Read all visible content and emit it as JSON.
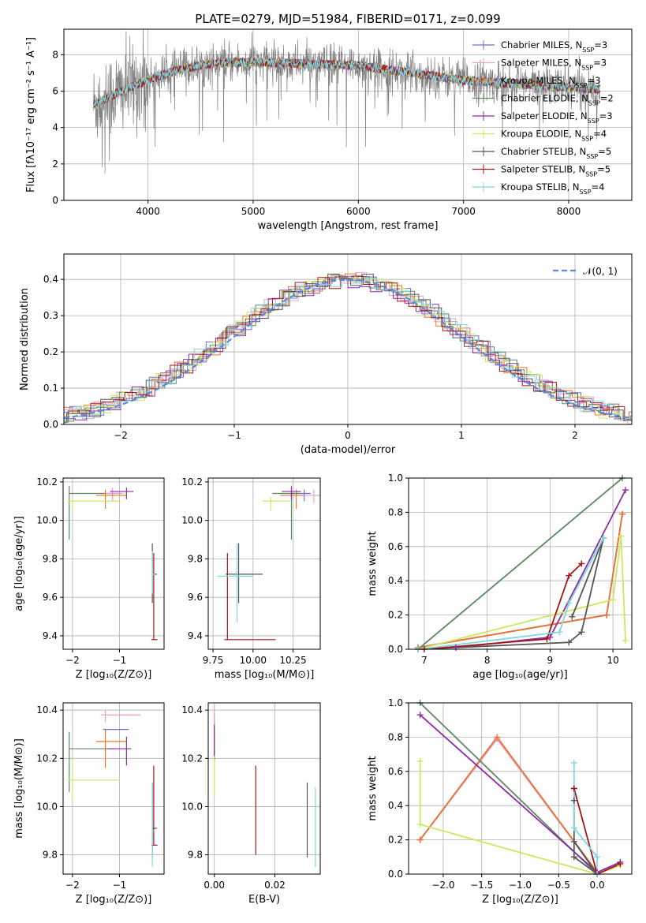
{
  "series_colors": [
    "#6a6fd0",
    "#e8a0c8",
    "#e8772e",
    "#5a8a60",
    "#8e2ca8",
    "#cbe860",
    "#555555",
    "#a31518",
    "#7fd8e0"
  ],
  "chart_data": [
    {
      "id": "spectrum",
      "type": "line",
      "title": "PLATE=0279, MJD=51984, FIBERID=0171, z=0.099",
      "xlabel": "wavelength [Angstrom, rest frame]",
      "ylabel": "Flux [fλ10⁻¹⁷ erg cm⁻² s⁻¹ A⁻¹]",
      "xlim": [
        3200,
        8600
      ],
      "ylim": [
        0,
        9.4
      ],
      "xticks": [
        4000,
        5000,
        6000,
        7000,
        8000
      ],
      "yticks": [
        0,
        2,
        4,
        6,
        8
      ],
      "legend_position": "top-right",
      "legend": [
        {
          "label": "Chabrier MILES, N_SSP=3",
          "color": "#6a6fd0"
        },
        {
          "label": "Salpeter MILES, N_SSP=3",
          "color": "#e8a0c8"
        },
        {
          "label": "Kroupa MILES, N_SSP=3",
          "color": "#e8772e"
        },
        {
          "label": "Chabrier ELODIE, N_SSP=2",
          "color": "#5a8a60"
        },
        {
          "label": "Salpeter ELODIE, N_SSP=3",
          "color": "#8e2ca8"
        },
        {
          "label": "Kroupa ELODIE, N_SSP=4",
          "color": "#cbe860"
        },
        {
          "label": "Chabrier STELIB, N_SSP=5",
          "color": "#555555"
        },
        {
          "label": "Salpeter STELIB, N_SSP=5",
          "color": "#a31518"
        },
        {
          "label": "Kroupa STELIB, N_SSP=4",
          "color": "#7fd8e0"
        }
      ],
      "model_shape": {
        "x": [
          3500,
          3700,
          4000,
          4300,
          4600,
          5000,
          5500,
          6000,
          6500,
          7000,
          7500,
          8000,
          8300
        ],
        "y": [
          5.3,
          5.9,
          6.6,
          7.2,
          7.5,
          7.6,
          7.5,
          7.4,
          7.0,
          6.6,
          6.4,
          6.2,
          6.1
        ]
      },
      "observed_color": "#808080"
    },
    {
      "id": "residuals",
      "type": "histogram",
      "xlabel": "(data-model)/error",
      "ylabel": "Normed distribution",
      "xlim": [
        -2.5,
        2.5
      ],
      "ylim": [
        0,
        0.47
      ],
      "xticks": [
        -2,
        -1,
        0,
        1,
        2
      ],
      "yticks": [
        0,
        0.1,
        0.2,
        0.3,
        0.4
      ],
      "bin_width": 0.1,
      "reference": {
        "label": "𝒩(0, 1)",
        "mean": 0,
        "sigma": 1,
        "color": "#5b8bd8"
      },
      "legend_position": "top-right"
    },
    {
      "id": "age_vs_Z",
      "type": "errorbar",
      "xlabel": "Z [log₁₀(Z/Z⊙)]",
      "ylabel": "age  [log₁₀(age/yr)]",
      "xlim": [
        -2.2,
        -0.05
      ],
      "ylim": [
        9.33,
        10.22
      ],
      "xticks": [
        -2,
        -1
      ],
      "yticks": [
        9.4,
        9.6,
        9.8,
        10.0,
        10.2
      ],
      "points": [
        {
          "x": -1.15,
          "y": 10.14,
          "xerr": [
            0.25,
            0.2
          ],
          "yerr": [
            0.04,
            0.02
          ],
          "color": "#6a6fd0"
        },
        {
          "x": -1.15,
          "y": 10.14,
          "xerr": [
            0.25,
            0.2
          ],
          "yerr": [
            0.04,
            0.03
          ],
          "color": "#e8a0c8"
        },
        {
          "x": -1.3,
          "y": 10.13,
          "xerr": [
            0.2,
            0.45
          ],
          "yerr": [
            0.07,
            0.03
          ],
          "color": "#e8772e"
        },
        {
          "x": -2.07,
          "y": 10.14,
          "xerr": [
            0.0,
            0.75
          ],
          "yerr": [
            0.24,
            0.04
          ],
          "color": "#5a8a60"
        },
        {
          "x": -0.85,
          "y": 10.15,
          "xerr": [
            0.35,
            0.15
          ],
          "yerr": [
            0.04,
            0.02
          ],
          "color": "#8e2ca8"
        },
        {
          "x": -2.0,
          "y": 10.1,
          "xerr": [
            0.1,
            1.0
          ],
          "yerr": [
            0.05,
            0.02
          ],
          "color": "#cbe860"
        },
        {
          "x": -0.3,
          "y": 9.72,
          "xerr": [
            0.0,
            0.1
          ],
          "yerr": [
            0.15,
            0.16
          ],
          "color": "#555555"
        },
        {
          "x": -0.27,
          "y": 9.38,
          "xerr": [
            0.05,
            0.08
          ],
          "yerr": [
            0.0,
            0.45
          ],
          "color": "#a31518"
        },
        {
          "x": -0.3,
          "y": 9.72,
          "xerr": [
            0.0,
            0.05
          ],
          "yerr": [
            0.1,
            0.12
          ],
          "color": "#7fd8e0"
        }
      ]
    },
    {
      "id": "age_vs_mass",
      "type": "errorbar",
      "xlabel": "mass [log₁₀(M/M⊙)]",
      "ylabel": "",
      "xlim": [
        9.72,
        10.42
      ],
      "ylim": [
        9.33,
        10.22
      ],
      "xticks": [
        9.75,
        10.0,
        10.25
      ],
      "yticks": [
        9.4,
        9.6,
        9.8,
        10.0,
        10.2
      ],
      "points": [
        {
          "x": 10.32,
          "y": 10.14,
          "xerr": [
            0.08,
            0.04
          ],
          "yerr": [
            0.04,
            0.02
          ],
          "color": "#6a6fd0"
        },
        {
          "x": 10.38,
          "y": 10.13,
          "xerr": [
            0.1,
            0.05
          ],
          "yerr": [
            0.04,
            0.03
          ],
          "color": "#e8a0c8"
        },
        {
          "x": 10.27,
          "y": 10.13,
          "xerr": [
            0.1,
            0.05
          ],
          "yerr": [
            0.07,
            0.03
          ],
          "color": "#e8772e"
        },
        {
          "x": 10.24,
          "y": 10.14,
          "xerr": [
            0.12,
            0.05
          ],
          "yerr": [
            0.24,
            0.04
          ],
          "color": "#5a8a60"
        },
        {
          "x": 10.24,
          "y": 10.15,
          "xerr": [
            0.06,
            0.06
          ],
          "yerr": [
            0.04,
            0.02
          ],
          "color": "#8e2ca8"
        },
        {
          "x": 10.11,
          "y": 10.1,
          "xerr": [
            0.05,
            0.12
          ],
          "yerr": [
            0.05,
            0.02
          ],
          "color": "#cbe860"
        },
        {
          "x": 9.91,
          "y": 9.72,
          "xerr": [
            0.08,
            0.15
          ],
          "yerr": [
            0.15,
            0.16
          ],
          "color": "#555555"
        },
        {
          "x": 9.84,
          "y": 9.38,
          "xerr": [
            0.02,
            0.3
          ],
          "yerr": [
            0.0,
            0.45
          ],
          "color": "#a31518"
        },
        {
          "x": 9.9,
          "y": 9.71,
          "xerr": [
            0.12,
            0.1
          ],
          "yerr": [
            0.24,
            0.17
          ],
          "color": "#7fd8e0"
        }
      ]
    },
    {
      "id": "weight_vs_age",
      "type": "line",
      "xlabel": "age  [log₁₀(age/yr)]",
      "ylabel": "mass weight",
      "xlim": [
        6.75,
        10.3
      ],
      "ylim": [
        0,
        1
      ],
      "xticks": [
        7,
        8,
        9,
        10
      ],
      "yticks": [
        0,
        0.2,
        0.4,
        0.6,
        0.8,
        1.0
      ],
      "series": [
        {
          "color": "#6a6fd0",
          "x": [
            6.9,
            9.9,
            10.15
          ],
          "y": [
            0.01,
            0.2,
            0.79
          ]
        },
        {
          "color": "#e8a0c8",
          "x": [
            6.9,
            9.9,
            10.15
          ],
          "y": [
            0.01,
            0.2,
            0.79
          ]
        },
        {
          "color": "#e8772e",
          "x": [
            6.9,
            9.9,
            10.15
          ],
          "y": [
            0.01,
            0.2,
            0.79
          ]
        },
        {
          "color": "#5a8a60",
          "x": [
            6.9,
            10.15
          ],
          "y": [
            0.0,
            1.0
          ]
        },
        {
          "color": "#8e2ca8",
          "x": [
            7.5,
            9.0,
            10.2
          ],
          "y": [
            0.01,
            0.07,
            0.93
          ]
        },
        {
          "color": "#cbe860",
          "x": [
            6.9,
            10.0,
            10.13,
            10.2
          ],
          "y": [
            0.0,
            0.29,
            0.66,
            0.05
          ]
        },
        {
          "color": "#555555",
          "x": [
            6.9,
            9.3,
            9.5,
            9.85,
            9.35
          ],
          "y": [
            0.0,
            0.04,
            0.1,
            0.65,
            0.19
          ]
        },
        {
          "color": "#a31518",
          "x": [
            7.0,
            8.95,
            9.3,
            9.5
          ],
          "y": [
            0.0,
            0.06,
            0.43,
            0.5
          ]
        },
        {
          "color": "#7fd8e0",
          "x": [
            6.9,
            9.15,
            9.3,
            9.85
          ],
          "y": [
            0.0,
            0.1,
            0.27,
            0.65
          ]
        }
      ]
    },
    {
      "id": "mass_vs_Z",
      "type": "errorbar",
      "xlabel": "Z [log₁₀(Z/Z⊙)]",
      "ylabel": "mass [log₁₀(M/M⊙)]",
      "xlim": [
        -2.2,
        -0.05
      ],
      "ylim": [
        9.72,
        10.43
      ],
      "xticks": [
        -2,
        -1
      ],
      "yticks": [
        9.8,
        10.0,
        10.2,
        10.4
      ],
      "points": [
        {
          "x": -1.3,
          "y": 10.32,
          "xerr": [
            0.05,
            0.5
          ],
          "yerr": [
            0.0,
            0.0
          ],
          "color": "#6a6fd0"
        },
        {
          "x": -1.3,
          "y": 10.38,
          "xerr": [
            0.1,
            0.75
          ],
          "yerr": [
            0.03,
            0.02
          ],
          "color": "#e8a0c8"
        },
        {
          "x": -1.3,
          "y": 10.27,
          "xerr": [
            0.2,
            0.45
          ],
          "yerr": [
            0.11,
            0.05
          ],
          "color": "#e8772e"
        },
        {
          "x": -2.07,
          "y": 10.24,
          "xerr": [
            0.0,
            1.0
          ],
          "yerr": [
            0.18,
            0.07
          ],
          "color": "#5a8a60"
        },
        {
          "x": -0.85,
          "y": 10.24,
          "xerr": [
            0.4,
            0.1
          ],
          "yerr": [
            0.07,
            0.05
          ],
          "color": "#8e2ca8"
        },
        {
          "x": -2.0,
          "y": 10.11,
          "xerr": [
            0.1,
            1.0
          ],
          "yerr": [
            0.08,
            0.09
          ],
          "color": "#cbe860"
        },
        {
          "x": -0.3,
          "y": 9.91,
          "xerr": [
            0.0,
            0.1
          ],
          "yerr": [
            0.12,
            0.19
          ],
          "color": "#555555"
        },
        {
          "x": -0.27,
          "y": 9.84,
          "xerr": [
            0.05,
            0.08
          ],
          "yerr": [
            0.0,
            0.33
          ],
          "color": "#a31518"
        },
        {
          "x": -0.3,
          "y": 9.9,
          "xerr": [
            0.0,
            0.05
          ],
          "yerr": [
            0.15,
            0.2
          ],
          "color": "#7fd8e0"
        }
      ]
    },
    {
      "id": "mass_vs_ebv",
      "type": "errorbar",
      "xlabel": "E(B-V)",
      "ylabel": "",
      "xlim": [
        -0.002,
        0.035
      ],
      "ylim": [
        9.72,
        10.43
      ],
      "xticks": [
        0.0,
        0.02
      ],
      "yticks": [
        9.8,
        10.0,
        10.2,
        10.4
      ],
      "points": [
        {
          "x": 0.0,
          "y": 10.32,
          "xerr": [
            0,
            0
          ],
          "yerr": [
            0.1,
            0.06
          ],
          "color": "#6a6fd0"
        },
        {
          "x": 0.0,
          "y": 10.38,
          "xerr": [
            0,
            0
          ],
          "yerr": [
            0.1,
            0.04
          ],
          "color": "#e8a0c8"
        },
        {
          "x": 0.0,
          "y": 10.27,
          "xerr": [
            0,
            0
          ],
          "yerr": [
            0.08,
            0.05
          ],
          "color": "#e8772e"
        },
        {
          "x": 0.0,
          "y": 10.24,
          "xerr": [
            0,
            0
          ],
          "yerr": [
            0.05,
            0.08
          ],
          "color": "#5a8a60"
        },
        {
          "x": 0.0,
          "y": 10.24,
          "xerr": [
            0,
            0
          ],
          "yerr": [
            0.05,
            0.1
          ],
          "color": "#8e2ca8"
        },
        {
          "x": 0.0,
          "y": 10.11,
          "xerr": [
            0,
            0
          ],
          "yerr": [
            0.07,
            0.1
          ],
          "color": "#cbe860"
        },
        {
          "x": 0.0307,
          "y": 9.95,
          "xerr": [
            0,
            0
          ],
          "yerr": [
            0.16,
            0.15
          ],
          "color": "#555555"
        },
        {
          "x": 0.0137,
          "y": 9.98,
          "xerr": [
            0,
            0
          ],
          "yerr": [
            0.18,
            0.19
          ],
          "color": "#a31518"
        },
        {
          "x": 0.0334,
          "y": 9.91,
          "xerr": [
            0,
            0
          ],
          "yerr": [
            0.16,
            0.17
          ],
          "color": "#7fd8e0"
        }
      ]
    },
    {
      "id": "weight_vs_Z",
      "type": "line",
      "xlabel": "Z [log₁₀(Z/Z⊙)]",
      "ylabel": "mass weight",
      "xlim": [
        -2.45,
        0.45
      ],
      "ylim": [
        0,
        1
      ],
      "xticks": [
        -2.0,
        -1.5,
        -1.0,
        -0.5,
        0.0
      ],
      "yticks": [
        0,
        0.2,
        0.4,
        0.6,
        0.8,
        1.0
      ],
      "series": [
        {
          "color": "#6a6fd0",
          "x": [
            -2.3,
            -1.3,
            0.0
          ],
          "y": [
            0.2,
            0.79,
            0.01
          ]
        },
        {
          "color": "#e8a0c8",
          "x": [
            -2.3,
            -1.3,
            0.0
          ],
          "y": [
            0.2,
            0.79,
            0.01
          ]
        },
        {
          "color": "#e8772e",
          "x": [
            -2.3,
            -1.3,
            0.0
          ],
          "y": [
            0.2,
            0.8,
            0.01
          ]
        },
        {
          "color": "#5a8a60",
          "x": [
            -2.3,
            0.0
          ],
          "y": [
            1.0,
            0.0
          ]
        },
        {
          "color": "#8e2ca8",
          "x": [
            -2.3,
            0.0,
            0.3
          ],
          "y": [
            0.93,
            0.01,
            0.07
          ]
        },
        {
          "color": "#cbe860",
          "x": [
            -2.3,
            -2.3,
            0.0,
            0.3
          ],
          "y": [
            0.66,
            0.29,
            0.0,
            0.05
          ]
        },
        {
          "color": "#555555",
          "x": [
            -0.3,
            -0.3,
            0.0,
            -0.3,
            -0.3
          ],
          "y": [
            0.5,
            0.1,
            0.0,
            0.19,
            0.43
          ]
        },
        {
          "color": "#a31518",
          "x": [
            -0.3,
            0.0,
            0.3
          ],
          "y": [
            0.5,
            0.0,
            0.06
          ]
        },
        {
          "color": "#7fd8e0",
          "x": [
            -0.3,
            -0.3,
            0.0,
            0.0
          ],
          "y": [
            0.65,
            0.27,
            0.1,
            0.0
          ]
        }
      ]
    }
  ]
}
